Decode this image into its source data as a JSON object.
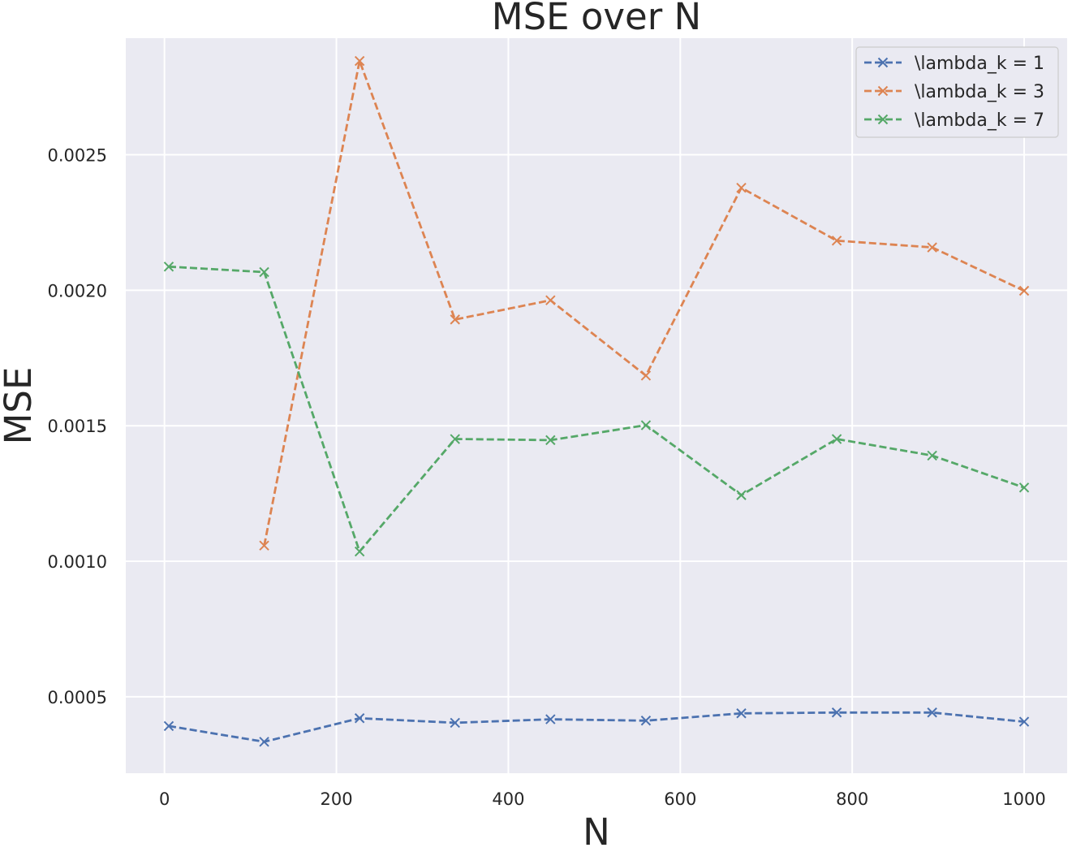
{
  "chart_data": {
    "type": "line",
    "title": "MSE over N",
    "xlabel": "N",
    "ylabel": "MSE",
    "x": [
      5,
      116,
      227,
      338,
      449,
      560,
      671,
      782,
      893,
      1000
    ],
    "xlim": [
      -45,
      1050
    ],
    "ylim": [
      0.000218,
      0.00293
    ],
    "xticks": [
      0,
      200,
      400,
      600,
      800,
      1000
    ],
    "xtick_labels": [
      "0",
      "200",
      "400",
      "600",
      "800",
      "1000"
    ],
    "yticks": [
      0.0005,
      0.001,
      0.0015,
      0.002,
      0.0025
    ],
    "ytick_labels": [
      "0.0005",
      "0.0010",
      "0.0015",
      "0.0020",
      "0.0025"
    ],
    "grid": true,
    "legend_position": "upper right",
    "series": [
      {
        "name": "\\lambda_k = 1",
        "color": "#4c72b0",
        "line_style": "dashed",
        "marker": "x",
        "values": [
          0.000392,
          0.000334,
          0.000421,
          0.000404,
          0.000417,
          0.000412,
          0.000439,
          0.000442,
          0.000442,
          0.000408
        ]
      },
      {
        "name": "\\lambda_k = 3",
        "color": "#dd8452",
        "line_style": "dashed",
        "marker": "x",
        "values": [
          null,
          0.001058,
          0.002846,
          0.001892,
          0.001963,
          0.001685,
          0.002378,
          0.002183,
          0.002158,
          0.001998
        ]
      },
      {
        "name": "\\lambda_k = 7",
        "color": "#55a868",
        "line_style": "dashed",
        "marker": "x",
        "values": [
          0.002087,
          0.002067,
          0.001036,
          0.001451,
          0.001447,
          0.001502,
          0.001244,
          0.001451,
          0.00139,
          0.001272
        ]
      }
    ]
  }
}
